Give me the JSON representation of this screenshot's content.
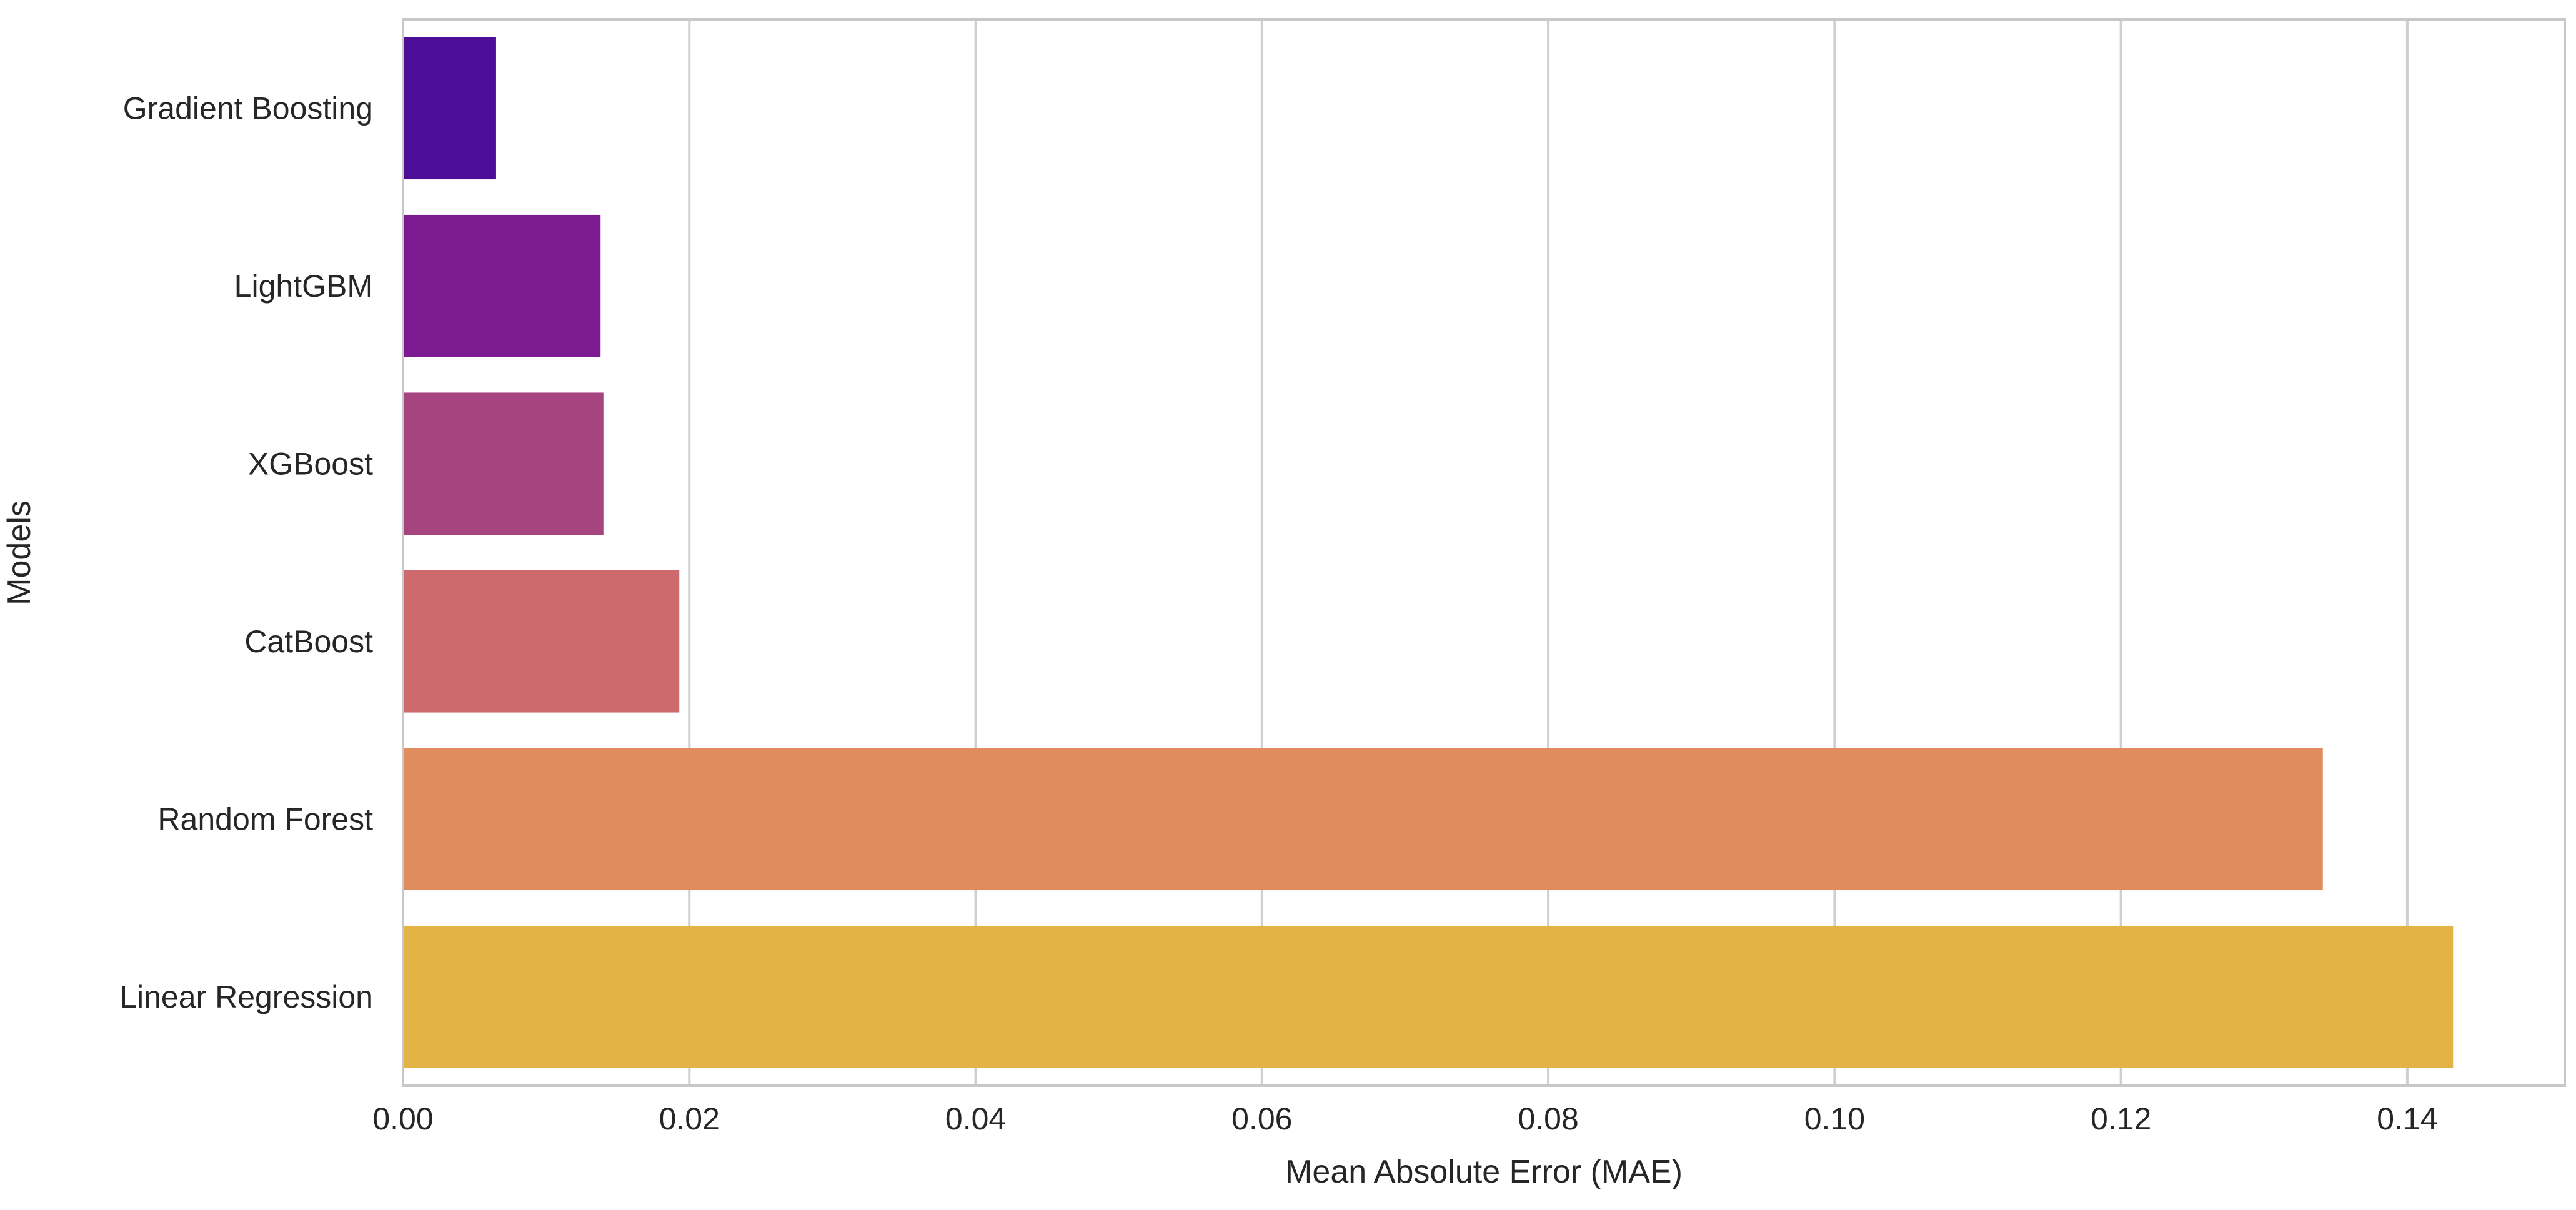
{
  "chart_data": {
    "type": "bar",
    "orientation": "horizontal",
    "title": "",
    "xlabel": "Mean Absolute Error (MAE)",
    "ylabel": "Models",
    "categories": [
      "Gradient Boosting",
      "LightGBM",
      "XGBoost",
      "CatBoost",
      "Random Forest",
      "Linear Regression"
    ],
    "values": [
      0.0065,
      0.0138,
      0.014,
      0.0193,
      0.1341,
      0.1432
    ],
    "colors": [
      "#4c0e96",
      "#7c1a91",
      "#a6447f",
      "#cc6a6e",
      "#e08c5e",
      "#e3b345"
    ],
    "xlim": [
      0,
      0.151
    ],
    "xticks": [
      "0.00",
      "0.02",
      "0.04",
      "0.06",
      "0.08",
      "0.10",
      "0.12",
      "0.14"
    ],
    "xtick_values": [
      0,
      0.02,
      0.04,
      0.06,
      0.08,
      0.1,
      0.12,
      0.14
    ],
    "grid": "vertical",
    "legend": "none"
  }
}
